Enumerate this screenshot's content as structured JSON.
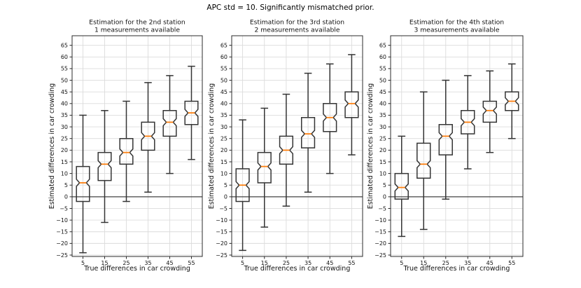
{
  "figure": {
    "title": "APC std = 10. Significantly mismatched prior.",
    "background": "#ffffff"
  },
  "style": {
    "box_edge_color": "#343434",
    "median_color": "#ff7f0e",
    "grid_color": "#dcdcdc",
    "spine_color": "#2b2b2b",
    "zero_line_color": "#1a1a1a",
    "tick_color": "#2b2b2b",
    "text_color": "#111111"
  },
  "shared_axes": {
    "xlabel": "True differences in car crowding",
    "ylabel": "Estimated differences in car crowding",
    "x_ticks": [
      5,
      15,
      25,
      35,
      45,
      55
    ],
    "y_ticks": [
      -25,
      -20,
      -15,
      -10,
      -5,
      0,
      5,
      10,
      15,
      20,
      25,
      30,
      35,
      40,
      45,
      50,
      55,
      60,
      65
    ],
    "xlim": [
      0,
      60
    ],
    "ylim": [
      -25.6,
      69.1
    ],
    "grid": true,
    "zero_line": true
  },
  "chart_data": [
    {
      "type": "boxplot",
      "title": "Estimation for the 2nd station",
      "subtitle": "1 measurements available",
      "xlabel": "True differences in car crowding",
      "ylabel": "Estimated differences in car crowding",
      "notched": true,
      "x": [
        5,
        15,
        25,
        35,
        45,
        55
      ],
      "boxes": [
        {
          "x": 5,
          "whislo": -24,
          "q1": -2,
          "med": 6,
          "q3": 13,
          "whishi": 35
        },
        {
          "x": 15,
          "whislo": -11,
          "q1": 7,
          "med": 14,
          "q3": 19,
          "whishi": 37
        },
        {
          "x": 25,
          "whislo": -2,
          "q1": 14,
          "med": 19,
          "q3": 25,
          "whishi": 41
        },
        {
          "x": 35,
          "whislo": 2,
          "q1": 20,
          "med": 26,
          "q3": 32,
          "whishi": 49
        },
        {
          "x": 45,
          "whislo": 10,
          "q1": 26,
          "med": 32,
          "q3": 37,
          "whishi": 52
        },
        {
          "x": 55,
          "whislo": 16,
          "q1": 31,
          "med": 36,
          "q3": 41,
          "whishi": 56
        }
      ]
    },
    {
      "type": "boxplot",
      "title": "Estimation for the 3rd station",
      "subtitle": "2 measurements available",
      "xlabel": "True differences in car crowding",
      "ylabel": "Estimated differences in car crowding",
      "notched": true,
      "x": [
        5,
        15,
        25,
        35,
        45,
        55
      ],
      "boxes": [
        {
          "x": 5,
          "whislo": -23,
          "q1": -2,
          "med": 5,
          "q3": 12,
          "whishi": 33
        },
        {
          "x": 15,
          "whislo": -13,
          "q1": 6,
          "med": 13,
          "q3": 19,
          "whishi": 38
        },
        {
          "x": 25,
          "whislo": -4,
          "q1": 14,
          "med": 20,
          "q3": 26,
          "whishi": 44
        },
        {
          "x": 35,
          "whislo": 2,
          "q1": 21,
          "med": 27,
          "q3": 34,
          "whishi": 53
        },
        {
          "x": 45,
          "whislo": 10,
          "q1": 28,
          "med": 34,
          "q3": 40,
          "whishi": 57
        },
        {
          "x": 55,
          "whislo": 18,
          "q1": 34,
          "med": 40,
          "q3": 45,
          "whishi": 61
        }
      ]
    },
    {
      "type": "boxplot",
      "title": "Estimation for the 4th station",
      "subtitle": "3 measurements available",
      "xlabel": "True differences in car crowding",
      "ylabel": "Estimated differences in car crowding",
      "notched": true,
      "x": [
        5,
        15,
        25,
        35,
        45,
        55
      ],
      "boxes": [
        {
          "x": 5,
          "whislo": -17,
          "q1": -1,
          "med": 4,
          "q3": 10,
          "whishi": 26
        },
        {
          "x": 15,
          "whislo": -14,
          "q1": 8,
          "med": 14,
          "q3": 23,
          "whishi": 45
        },
        {
          "x": 25,
          "whislo": -1,
          "q1": 18,
          "med": 26,
          "q3": 31,
          "whishi": 50
        },
        {
          "x": 35,
          "whislo": 12,
          "q1": 27,
          "med": 32,
          "q3": 37,
          "whishi": 52
        },
        {
          "x": 45,
          "whislo": 19,
          "q1": 32,
          "med": 37,
          "q3": 41,
          "whishi": 54
        },
        {
          "x": 55,
          "whislo": 25,
          "q1": 37,
          "med": 41,
          "q3": 45,
          "whishi": 57
        }
      ]
    }
  ]
}
